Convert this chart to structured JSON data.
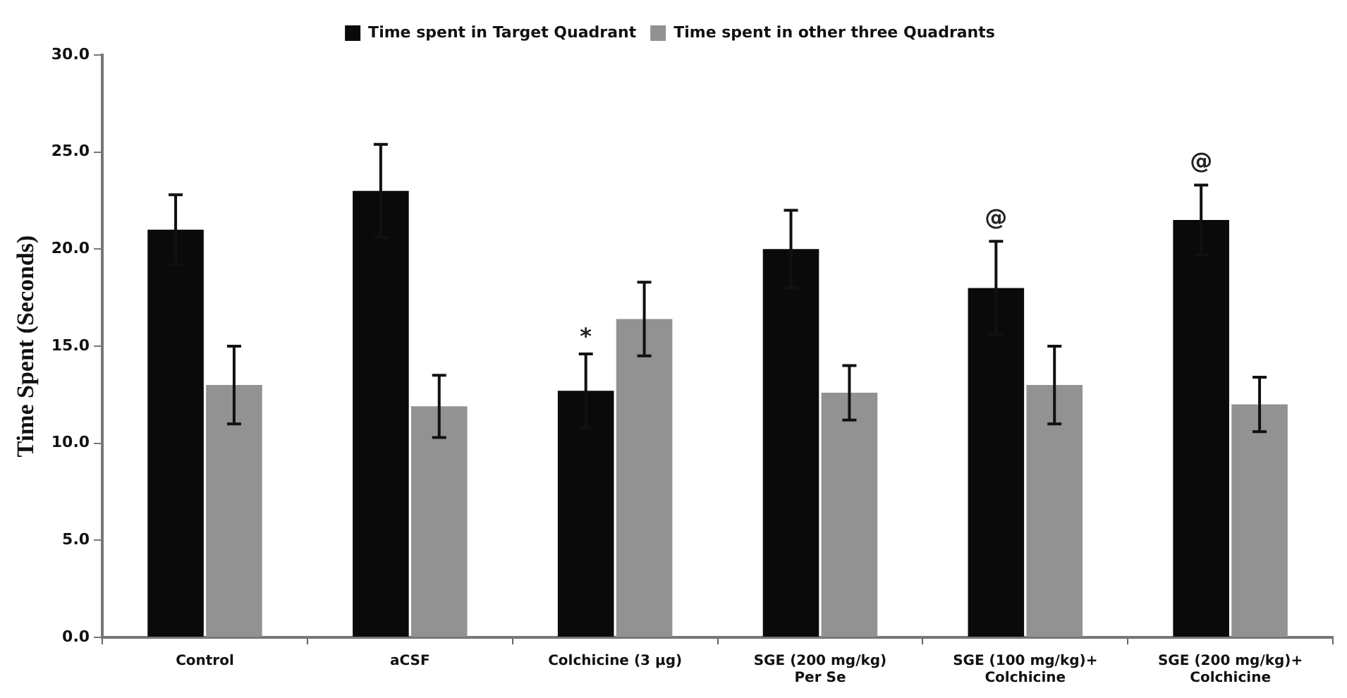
{
  "chart_data": {
    "type": "bar",
    "ylabel": "Time Spent (Seconds)",
    "categories": [
      "Control",
      "aCSF",
      "Colchicine (3 µg)",
      "SGE (200 mg/kg) Per Se",
      "SGE (100 mg/kg)+ Colchicine",
      "SGE (200 mg/kg)+ Colchicine"
    ],
    "series": [
      {
        "name": "Time spent in Target Quadrant",
        "color": "#0a0a0a",
        "values": [
          21.0,
          23.0,
          12.7,
          20.0,
          18.0,
          21.5
        ],
        "errors": [
          1.8,
          2.4,
          1.9,
          2.0,
          2.4,
          1.8
        ]
      },
      {
        "name": "Time spent in other three Quadrants",
        "color": "#929292",
        "values": [
          13.0,
          11.9,
          16.4,
          12.6,
          13.0,
          12.0
        ],
        "errors": [
          2.0,
          1.6,
          1.9,
          1.4,
          2.0,
          1.4
        ]
      }
    ],
    "ylim": [
      0,
      30
    ],
    "yticks": [
      {
        "value": 0,
        "label": "0.0"
      },
      {
        "value": 5,
        "label": "5.0"
      },
      {
        "value": 10,
        "label": "10.0"
      },
      {
        "value": 15,
        "label": "15.0"
      },
      {
        "value": 20,
        "label": "20.0"
      },
      {
        "value": 25,
        "label": "25.0"
      },
      {
        "value": 30,
        "label": "30.0"
      }
    ],
    "annotations": [
      {
        "text": "*",
        "x": "Colchicine (3 µg)",
        "y": 14.6
      },
      "@",
      "@"
    ],
    "grid": false,
    "legend": "top"
  }
}
